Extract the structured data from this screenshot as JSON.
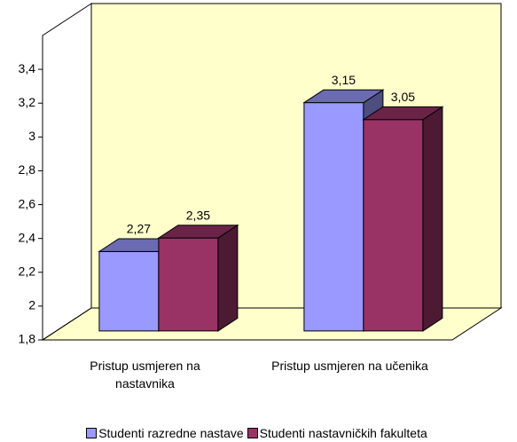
{
  "chart_data": {
    "type": "bar3d",
    "categories": [
      "Pristup usmjeren na nastavnika",
      "Pristup usmjeren na učenika"
    ],
    "series": [
      {
        "name": "Studenti razredne nastave",
        "color": "#9999ff",
        "values": [
          2.27,
          3.15
        ],
        "value_labels": [
          "2,27",
          "3,15"
        ]
      },
      {
        "name": "Studenti nastavničkih fakulteta",
        "color": "#993366",
        "values": [
          2.35,
          3.05
        ],
        "value_labels": [
          "2,35",
          "3,05"
        ]
      }
    ],
    "ylim": [
      1.8,
      3.6
    ],
    "yticks": [
      {
        "value": 1.8,
        "label": "1,8"
      },
      2,
      {
        "value": 2.2,
        "label": "2,2"
      },
      {
        "value": 2.4,
        "label": "2,4"
      },
      {
        "value": 2.6,
        "label": "2,6"
      },
      {
        "value": 2.8,
        "label": "2,8"
      },
      3,
      {
        "value": 3.2,
        "label": "3,2"
      },
      {
        "value": 3.4,
        "label": "3,4"
      }
    ],
    "wall_color": "#ffffcc",
    "legend": "bottom"
  }
}
